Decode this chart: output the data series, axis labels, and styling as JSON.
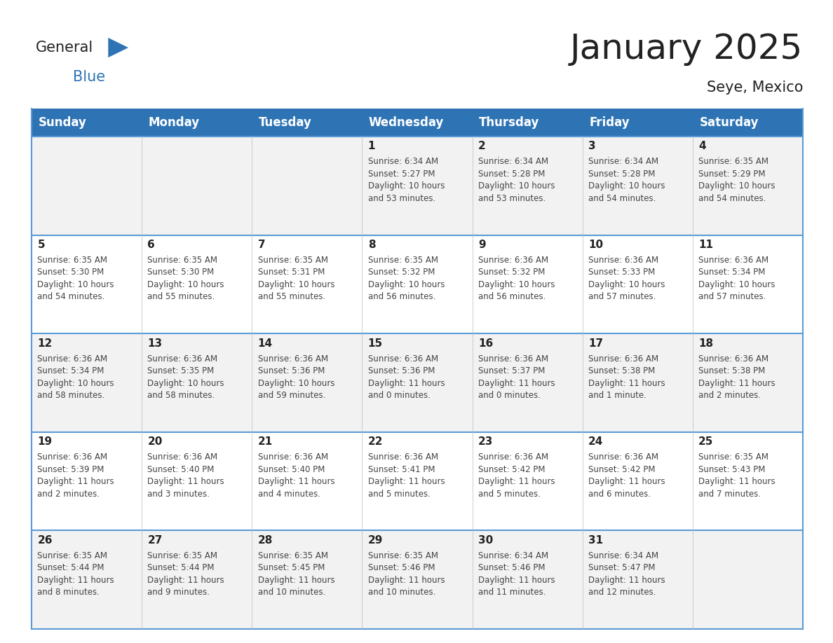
{
  "title": "January 2025",
  "subtitle": "Seye, Mexico",
  "header_color": "#2E74B5",
  "header_text_color": "#FFFFFF",
  "days_of_week": [
    "Sunday",
    "Monday",
    "Tuesday",
    "Wednesday",
    "Thursday",
    "Friday",
    "Saturday"
  ],
  "background_color": "#FFFFFF",
  "cell_bg_light": "#F2F2F2",
  "cell_bg_white": "#FFFFFF",
  "border_color": "#2E74B5",
  "separator_color": "#5B9BD5",
  "day_num_color": "#222222",
  "info_text_color": "#444444",
  "calendar": [
    [
      {
        "day": 0,
        "info": ""
      },
      {
        "day": 0,
        "info": ""
      },
      {
        "day": 0,
        "info": ""
      },
      {
        "day": 1,
        "info": "Sunrise: 6:34 AM\nSunset: 5:27 PM\nDaylight: 10 hours\nand 53 minutes."
      },
      {
        "day": 2,
        "info": "Sunrise: 6:34 AM\nSunset: 5:28 PM\nDaylight: 10 hours\nand 53 minutes."
      },
      {
        "day": 3,
        "info": "Sunrise: 6:34 AM\nSunset: 5:28 PM\nDaylight: 10 hours\nand 54 minutes."
      },
      {
        "day": 4,
        "info": "Sunrise: 6:35 AM\nSunset: 5:29 PM\nDaylight: 10 hours\nand 54 minutes."
      }
    ],
    [
      {
        "day": 5,
        "info": "Sunrise: 6:35 AM\nSunset: 5:30 PM\nDaylight: 10 hours\nand 54 minutes."
      },
      {
        "day": 6,
        "info": "Sunrise: 6:35 AM\nSunset: 5:30 PM\nDaylight: 10 hours\nand 55 minutes."
      },
      {
        "day": 7,
        "info": "Sunrise: 6:35 AM\nSunset: 5:31 PM\nDaylight: 10 hours\nand 55 minutes."
      },
      {
        "day": 8,
        "info": "Sunrise: 6:35 AM\nSunset: 5:32 PM\nDaylight: 10 hours\nand 56 minutes."
      },
      {
        "day": 9,
        "info": "Sunrise: 6:36 AM\nSunset: 5:32 PM\nDaylight: 10 hours\nand 56 minutes."
      },
      {
        "day": 10,
        "info": "Sunrise: 6:36 AM\nSunset: 5:33 PM\nDaylight: 10 hours\nand 57 minutes."
      },
      {
        "day": 11,
        "info": "Sunrise: 6:36 AM\nSunset: 5:34 PM\nDaylight: 10 hours\nand 57 minutes."
      }
    ],
    [
      {
        "day": 12,
        "info": "Sunrise: 6:36 AM\nSunset: 5:34 PM\nDaylight: 10 hours\nand 58 minutes."
      },
      {
        "day": 13,
        "info": "Sunrise: 6:36 AM\nSunset: 5:35 PM\nDaylight: 10 hours\nand 58 minutes."
      },
      {
        "day": 14,
        "info": "Sunrise: 6:36 AM\nSunset: 5:36 PM\nDaylight: 10 hours\nand 59 minutes."
      },
      {
        "day": 15,
        "info": "Sunrise: 6:36 AM\nSunset: 5:36 PM\nDaylight: 11 hours\nand 0 minutes."
      },
      {
        "day": 16,
        "info": "Sunrise: 6:36 AM\nSunset: 5:37 PM\nDaylight: 11 hours\nand 0 minutes."
      },
      {
        "day": 17,
        "info": "Sunrise: 6:36 AM\nSunset: 5:38 PM\nDaylight: 11 hours\nand 1 minute."
      },
      {
        "day": 18,
        "info": "Sunrise: 6:36 AM\nSunset: 5:38 PM\nDaylight: 11 hours\nand 2 minutes."
      }
    ],
    [
      {
        "day": 19,
        "info": "Sunrise: 6:36 AM\nSunset: 5:39 PM\nDaylight: 11 hours\nand 2 minutes."
      },
      {
        "day": 20,
        "info": "Sunrise: 6:36 AM\nSunset: 5:40 PM\nDaylight: 11 hours\nand 3 minutes."
      },
      {
        "day": 21,
        "info": "Sunrise: 6:36 AM\nSunset: 5:40 PM\nDaylight: 11 hours\nand 4 minutes."
      },
      {
        "day": 22,
        "info": "Sunrise: 6:36 AM\nSunset: 5:41 PM\nDaylight: 11 hours\nand 5 minutes."
      },
      {
        "day": 23,
        "info": "Sunrise: 6:36 AM\nSunset: 5:42 PM\nDaylight: 11 hours\nand 5 minutes."
      },
      {
        "day": 24,
        "info": "Sunrise: 6:36 AM\nSunset: 5:42 PM\nDaylight: 11 hours\nand 6 minutes."
      },
      {
        "day": 25,
        "info": "Sunrise: 6:35 AM\nSunset: 5:43 PM\nDaylight: 11 hours\nand 7 minutes."
      }
    ],
    [
      {
        "day": 26,
        "info": "Sunrise: 6:35 AM\nSunset: 5:44 PM\nDaylight: 11 hours\nand 8 minutes."
      },
      {
        "day": 27,
        "info": "Sunrise: 6:35 AM\nSunset: 5:44 PM\nDaylight: 11 hours\nand 9 minutes."
      },
      {
        "day": 28,
        "info": "Sunrise: 6:35 AM\nSunset: 5:45 PM\nDaylight: 11 hours\nand 10 minutes."
      },
      {
        "day": 29,
        "info": "Sunrise: 6:35 AM\nSunset: 5:46 PM\nDaylight: 11 hours\nand 10 minutes."
      },
      {
        "day": 30,
        "info": "Sunrise: 6:34 AM\nSunset: 5:46 PM\nDaylight: 11 hours\nand 11 minutes."
      },
      {
        "day": 31,
        "info": "Sunrise: 6:34 AM\nSunset: 5:47 PM\nDaylight: 11 hours\nand 12 minutes."
      },
      {
        "day": 0,
        "info": ""
      }
    ]
  ],
  "logo_general_color": "#222222",
  "logo_blue_color": "#2E74B5",
  "title_fontsize": 36,
  "subtitle_fontsize": 15,
  "header_fontsize": 12,
  "day_num_fontsize": 11,
  "info_fontsize": 8.5
}
